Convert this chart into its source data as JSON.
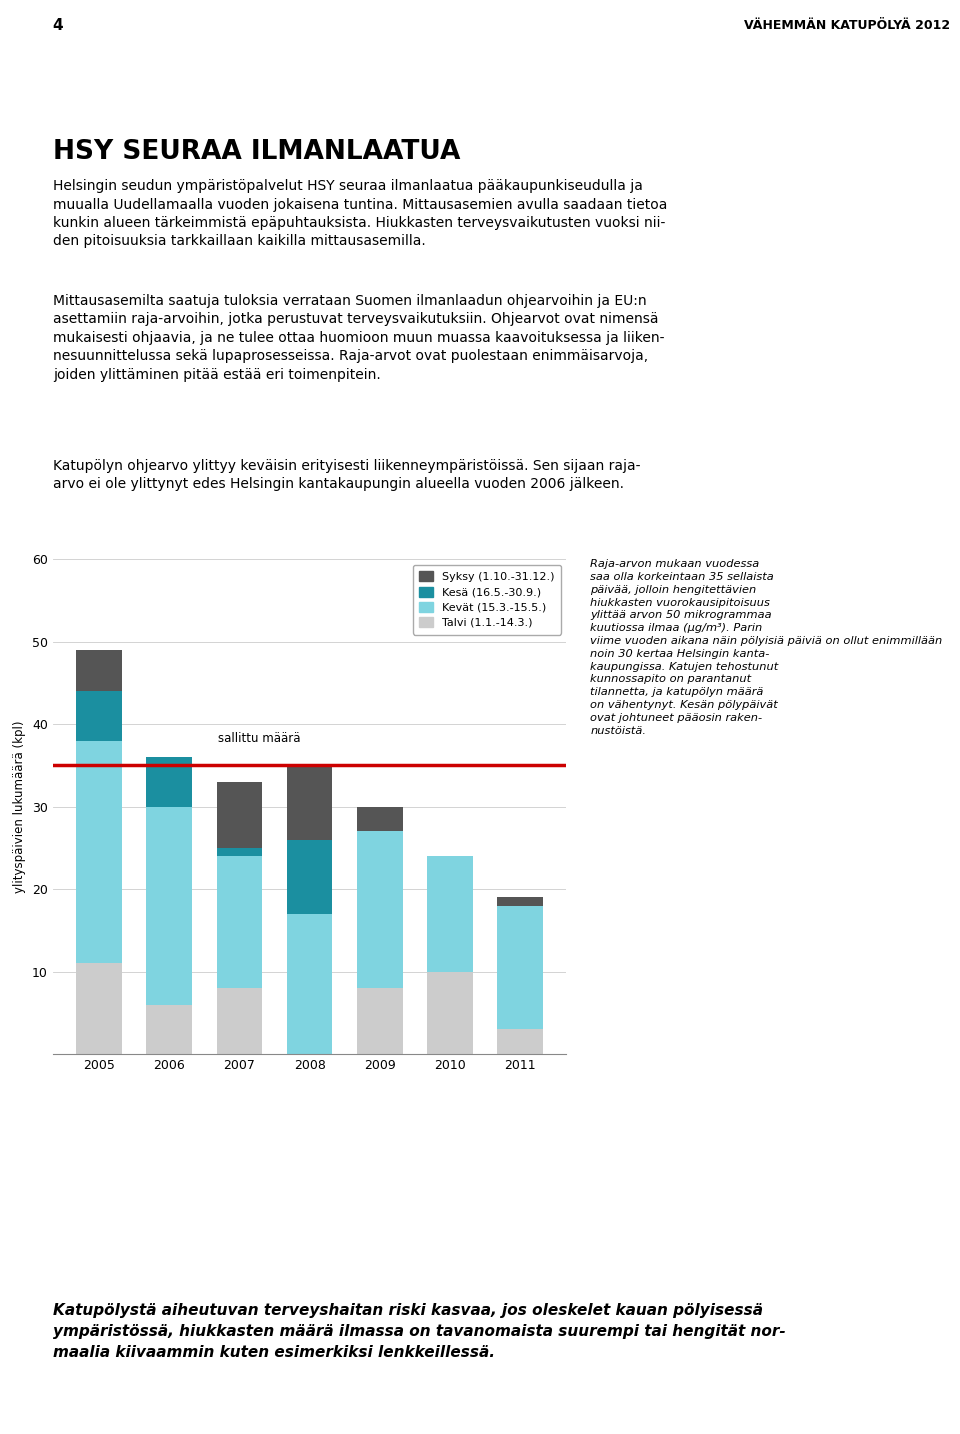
{
  "page_number": "4",
  "page_title": "VÄHEMMÄN KATUPÖLYÄ 2012",
  "heading": "HSY SEURAA ILMANLAATUA",
  "para1": "Helsingin seudun ympäristöpalvelut HSY seuraa ilmanlaatua pääkaupunkiseudulla ja\nmuualla Uudellamaalla vuoden jokaisena tuntina. Mittausasemien avulla saadaan tietoa\nkunkin alueen tärkeimmistä epäpuhtauksista. Hiukkasten terveysvaikutusten vuoksi nii-\nden pitoisuuksia tarkkaillaan kaikilla mittausasemilla.",
  "para2": "Mittausasemilta saatuja tuloksia verrataan Suomen ilmanlaadun ohjearvoihin ja EU:n\nasettamiin raja-arvoihin, jotka perustuvat terveysvaikutuksiin. Ohjearvot ovat nimensä\nmukaisesti ohjaavia, ja ne tulee ottaa huomioon muun muassa kaavoituksessa ja liiken-\nnesuunnittelussa sekä lupaprosesseissa. Raja-arvot ovat puolestaan enimmäisarvoja,\njoiden ylittäminen pitää estää eri toimenpitein.",
  "para3": "Katupölyn ohjearvo ylittyy keväisin erityisesti liikenneympäristöissä. Sen sijaan raja-\narvo ei ole ylittynyt edes Helsingin kantakaupungin alueella vuoden 2006 jälkeen.",
  "years": [
    2005,
    2006,
    2007,
    2008,
    2009,
    2010,
    2011
  ],
  "syksy": [
    5,
    0,
    8,
    9,
    3,
    0,
    1
  ],
  "kesa": [
    6,
    6,
    1,
    9,
    0,
    0,
    0
  ],
  "kevat": [
    27,
    24,
    16,
    17,
    19,
    14,
    15
  ],
  "talvi": [
    11,
    6,
    8,
    0,
    8,
    10,
    3
  ],
  "sallittu_maara": 35,
  "sallittu_label": "sallittu määrä",
  "ylabel": "ylityspäivien lukumäärä (kpl)",
  "ylim": [
    0,
    60
  ],
  "yticks": [
    0,
    10,
    20,
    30,
    40,
    50,
    60
  ],
  "legend_labels": [
    "Syksy (1.10.-31.12.)",
    "Kesä (16.5.-30.9.)",
    "Kevät (15.3.-15.5.)",
    "Talvi (1.1.-14.3.)"
  ],
  "colors": {
    "syksy": "#555555",
    "kesa": "#1b8fa0",
    "kevat": "#7fd4e0",
    "talvi": "#cccccc",
    "line": "#cc0000",
    "background": "#ffffff"
  },
  "sidebar_text": "Raja-arvon mukaan vuodessa\nsaa olla korkeintaan 35 sellaista\npäivää, jolloin hengitettävien\nhiukkasten vuorokausipitoisuus\nylittää arvon 50 mikrogrammaa\nkuutiossa ilmaa (µg/m³). Parin\nviime vuoden aikana näin pölyisiä päiviä on ollut enimmillään\nnoin 30 kertaa Helsingin kanta-\nkaupungissa. Katujen tehostunut\nkunnossapito on parantanut\ntilannetta, ja katupölyn määrä\non vähentynyt. Kesän pölypäivät\novat johtuneet pääosin raken-\nnustöistä.",
  "footer_text": "Katupölystä aiheutuvan terveyshaitan riski kasvaa, jos oleskelet kauan pölyisessä\nympäristössä, hiukkasten määrä ilmassa on tavanomaista suurempi tai hengität nor-\nmaalia kiivaammin kuten esimerkiksi lenkkeillessä.",
  "footer_bg": "#dce8c0"
}
